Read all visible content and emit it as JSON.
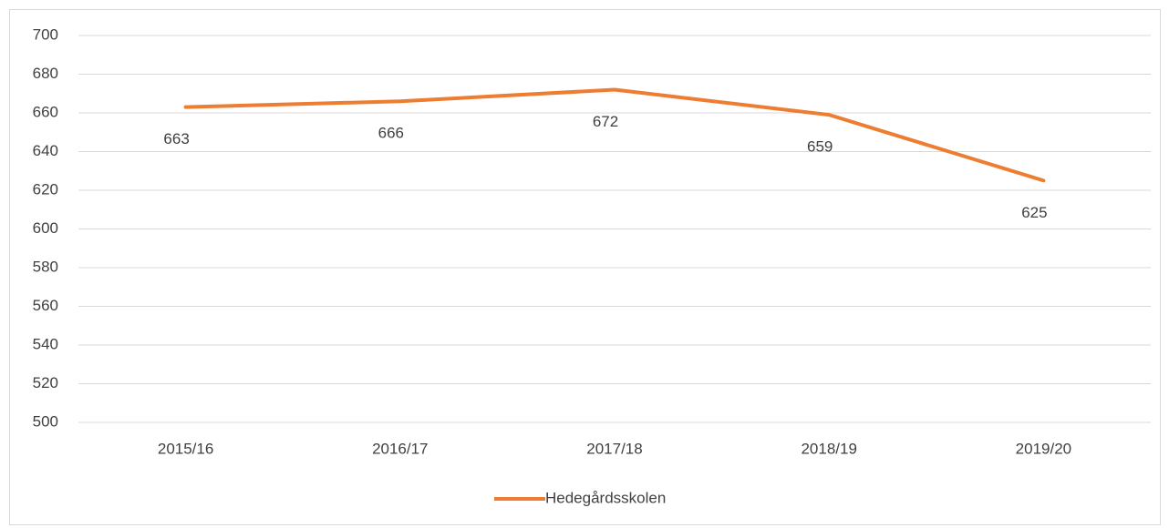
{
  "chart_data": {
    "type": "line",
    "categories": [
      "2015/16",
      "2016/17",
      "2017/18",
      "2018/19",
      "2019/20"
    ],
    "series": [
      {
        "name": "Hedegårdsskolen",
        "color": "#ed7d31",
        "values": [
          663,
          666,
          672,
          659,
          625
        ]
      }
    ],
    "ylim": [
      500,
      700
    ],
    "yticks": [
      500,
      520,
      540,
      560,
      580,
      600,
      620,
      640,
      660,
      680,
      700
    ],
    "grid": true,
    "legend": "bottom"
  }
}
